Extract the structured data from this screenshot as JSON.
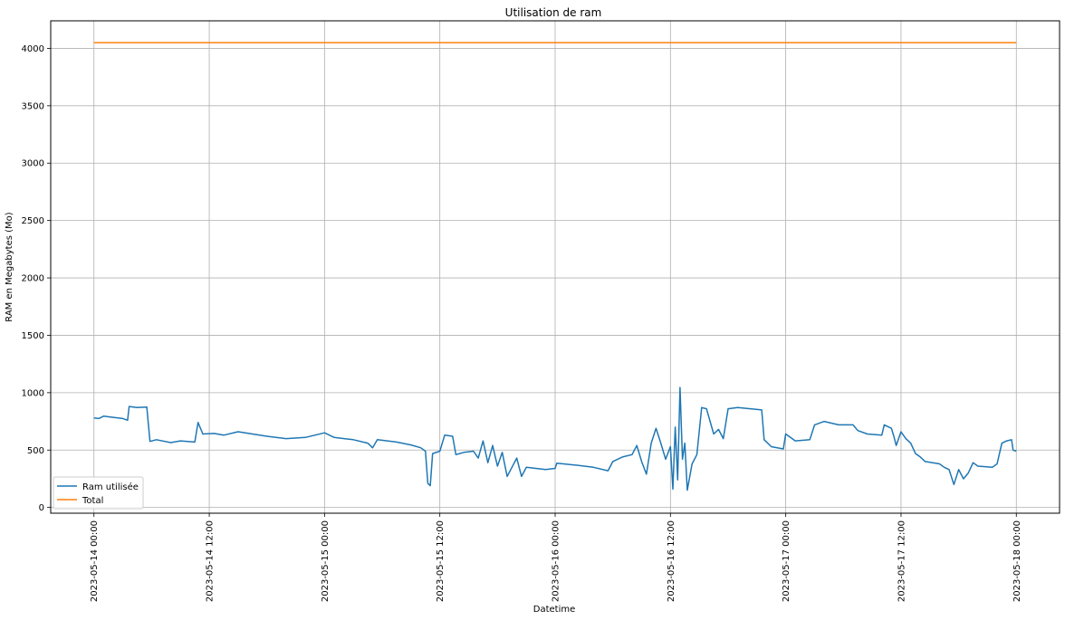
{
  "chart_data": {
    "type": "line",
    "title": "Utilisation de ram",
    "xlabel": "Datetime",
    "ylabel": "RAM en Megabytes (Mo)",
    "xlim": [
      "2023-05-13 19:30",
      "2023-05-18 04:30"
    ],
    "ylim": [
      -50,
      4240
    ],
    "x_ticks": [
      "2023-05-14 00:00",
      "2023-05-14 12:00",
      "2023-05-15 00:00",
      "2023-05-15 12:00",
      "2023-05-16 00:00",
      "2023-05-16 12:00",
      "2023-05-17 00:00",
      "2023-05-17 12:00",
      "2023-05-18 00:00"
    ],
    "y_ticks": [
      0,
      500,
      1000,
      1500,
      2000,
      2500,
      3000,
      3500,
      4000
    ],
    "grid": true,
    "legend_position": "lower-left",
    "series": [
      {
        "name": "Ram utilisée",
        "color": "#1f77b4",
        "points": [
          [
            "2023-05-14 00:00",
            780
          ],
          [
            "2023-05-14 00:30",
            775
          ],
          [
            "2023-05-14 01:00",
            795
          ],
          [
            "2023-05-14 02:00",
            785
          ],
          [
            "2023-05-14 03:00",
            775
          ],
          [
            "2023-05-14 03:30",
            760
          ],
          [
            "2023-05-14 03:40",
            880
          ],
          [
            "2023-05-14 04:30",
            870
          ],
          [
            "2023-05-14 05:30",
            875
          ],
          [
            "2023-05-14 05:50",
            575
          ],
          [
            "2023-05-14 06:30",
            590
          ],
          [
            "2023-05-14 08:00",
            565
          ],
          [
            "2023-05-14 09:00",
            580
          ],
          [
            "2023-05-14 10:30",
            570
          ],
          [
            "2023-05-14 10:50",
            740
          ],
          [
            "2023-05-14 11:20",
            640
          ],
          [
            "2023-05-14 12:30",
            645
          ],
          [
            "2023-05-14 13:30",
            630
          ],
          [
            "2023-05-14 15:00",
            660
          ],
          [
            "2023-05-14 16:30",
            640
          ],
          [
            "2023-05-14 18:00",
            620
          ],
          [
            "2023-05-14 20:00",
            600
          ],
          [
            "2023-05-14 22:00",
            610
          ],
          [
            "2023-05-15 00:00",
            650
          ],
          [
            "2023-05-15 01:00",
            610
          ],
          [
            "2023-05-15 03:00",
            590
          ],
          [
            "2023-05-15 04:30",
            560
          ],
          [
            "2023-05-15 05:00",
            520
          ],
          [
            "2023-05-15 05:30",
            590
          ],
          [
            "2023-05-15 07:30",
            570
          ],
          [
            "2023-05-15 09:00",
            545
          ],
          [
            "2023-05-15 10:00",
            520
          ],
          [
            "2023-05-15 10:30",
            490
          ],
          [
            "2023-05-15 10:45",
            210
          ],
          [
            "2023-05-15 11:00",
            190
          ],
          [
            "2023-05-15 11:15",
            470
          ],
          [
            "2023-05-15 12:00",
            490
          ],
          [
            "2023-05-15 12:30",
            630
          ],
          [
            "2023-05-15 13:20",
            620
          ],
          [
            "2023-05-15 13:40",
            460
          ],
          [
            "2023-05-15 14:30",
            480
          ],
          [
            "2023-05-15 15:30",
            490
          ],
          [
            "2023-05-15 16:00",
            430
          ],
          [
            "2023-05-15 16:30",
            580
          ],
          [
            "2023-05-15 17:00",
            390
          ],
          [
            "2023-05-15 17:30",
            540
          ],
          [
            "2023-05-15 18:00",
            360
          ],
          [
            "2023-05-15 18:30",
            480
          ],
          [
            "2023-05-15 19:00",
            270
          ],
          [
            "2023-05-15 19:30",
            350
          ],
          [
            "2023-05-15 20:00",
            430
          ],
          [
            "2023-05-15 20:30",
            270
          ],
          [
            "2023-05-15 21:00",
            350
          ],
          [
            "2023-05-15 22:00",
            340
          ],
          [
            "2023-05-15 23:00",
            330
          ],
          [
            "2023-05-16 00:00",
            340
          ],
          [
            "2023-05-16 00:10",
            385
          ],
          [
            "2023-05-16 02:00",
            370
          ],
          [
            "2023-05-16 04:00",
            350
          ],
          [
            "2023-05-16 05:30",
            320
          ],
          [
            "2023-05-16 06:00",
            400
          ],
          [
            "2023-05-16 07:00",
            440
          ],
          [
            "2023-05-16 08:00",
            460
          ],
          [
            "2023-05-16 08:30",
            540
          ],
          [
            "2023-05-16 09:00",
            400
          ],
          [
            "2023-05-16 09:30",
            290
          ],
          [
            "2023-05-16 10:00",
            560
          ],
          [
            "2023-05-16 10:30",
            690
          ],
          [
            "2023-05-16 11:00",
            560
          ],
          [
            "2023-05-16 11:30",
            420
          ],
          [
            "2023-05-16 12:00",
            530
          ],
          [
            "2023-05-16 12:15",
            160
          ],
          [
            "2023-05-16 12:30",
            700
          ],
          [
            "2023-05-16 12:45",
            240
          ],
          [
            "2023-05-16 13:00",
            1045
          ],
          [
            "2023-05-16 13:15",
            420
          ],
          [
            "2023-05-16 13:30",
            560
          ],
          [
            "2023-05-16 13:45",
            150
          ],
          [
            "2023-05-16 14:15",
            380
          ],
          [
            "2023-05-16 14:45",
            460
          ],
          [
            "2023-05-16 15:15",
            870
          ],
          [
            "2023-05-16 15:45",
            860
          ],
          [
            "2023-05-16 16:30",
            640
          ],
          [
            "2023-05-16 17:00",
            680
          ],
          [
            "2023-05-16 17:30",
            600
          ],
          [
            "2023-05-16 18:00",
            860
          ],
          [
            "2023-05-16 19:00",
            870
          ],
          [
            "2023-05-16 21:30",
            850
          ],
          [
            "2023-05-16 21:45",
            590
          ],
          [
            "2023-05-16 22:30",
            530
          ],
          [
            "2023-05-16 23:45",
            510
          ],
          [
            "2023-05-17 00:00",
            640
          ],
          [
            "2023-05-17 01:00",
            580
          ],
          [
            "2023-05-17 02:30",
            590
          ],
          [
            "2023-05-17 03:00",
            720
          ],
          [
            "2023-05-17 04:00",
            750
          ],
          [
            "2023-05-17 05:30",
            720
          ],
          [
            "2023-05-17 07:00",
            720
          ],
          [
            "2023-05-17 07:30",
            670
          ],
          [
            "2023-05-17 08:30",
            640
          ],
          [
            "2023-05-17 10:00",
            630
          ],
          [
            "2023-05-17 10:15",
            720
          ],
          [
            "2023-05-17 11:00",
            690
          ],
          [
            "2023-05-17 11:15",
            620
          ],
          [
            "2023-05-17 11:30",
            540
          ],
          [
            "2023-05-17 12:00",
            660
          ],
          [
            "2023-05-17 12:30",
            600
          ],
          [
            "2023-05-17 13:00",
            560
          ],
          [
            "2023-05-17 13:30",
            470
          ],
          [
            "2023-05-17 14:00",
            440
          ],
          [
            "2023-05-17 14:30",
            400
          ],
          [
            "2023-05-17 16:00",
            380
          ],
          [
            "2023-05-17 16:30",
            350
          ],
          [
            "2023-05-17 17:00",
            330
          ],
          [
            "2023-05-17 17:30",
            200
          ],
          [
            "2023-05-17 18:00",
            330
          ],
          [
            "2023-05-17 18:30",
            250
          ],
          [
            "2023-05-17 19:00",
            300
          ],
          [
            "2023-05-17 19:30",
            390
          ],
          [
            "2023-05-17 20:00",
            360
          ],
          [
            "2023-05-17 21:30",
            350
          ],
          [
            "2023-05-17 22:00",
            380
          ],
          [
            "2023-05-17 22:30",
            560
          ],
          [
            "2023-05-17 23:00",
            580
          ],
          [
            "2023-05-17 23:30",
            590
          ],
          [
            "2023-05-17 23:40",
            500
          ],
          [
            "2023-05-18 00:00",
            490
          ]
        ]
      },
      {
        "name": "Total",
        "color": "#ff7f0e",
        "points": [
          [
            "2023-05-14 00:00",
            4050
          ],
          [
            "2023-05-18 00:00",
            4050
          ]
        ]
      }
    ]
  }
}
